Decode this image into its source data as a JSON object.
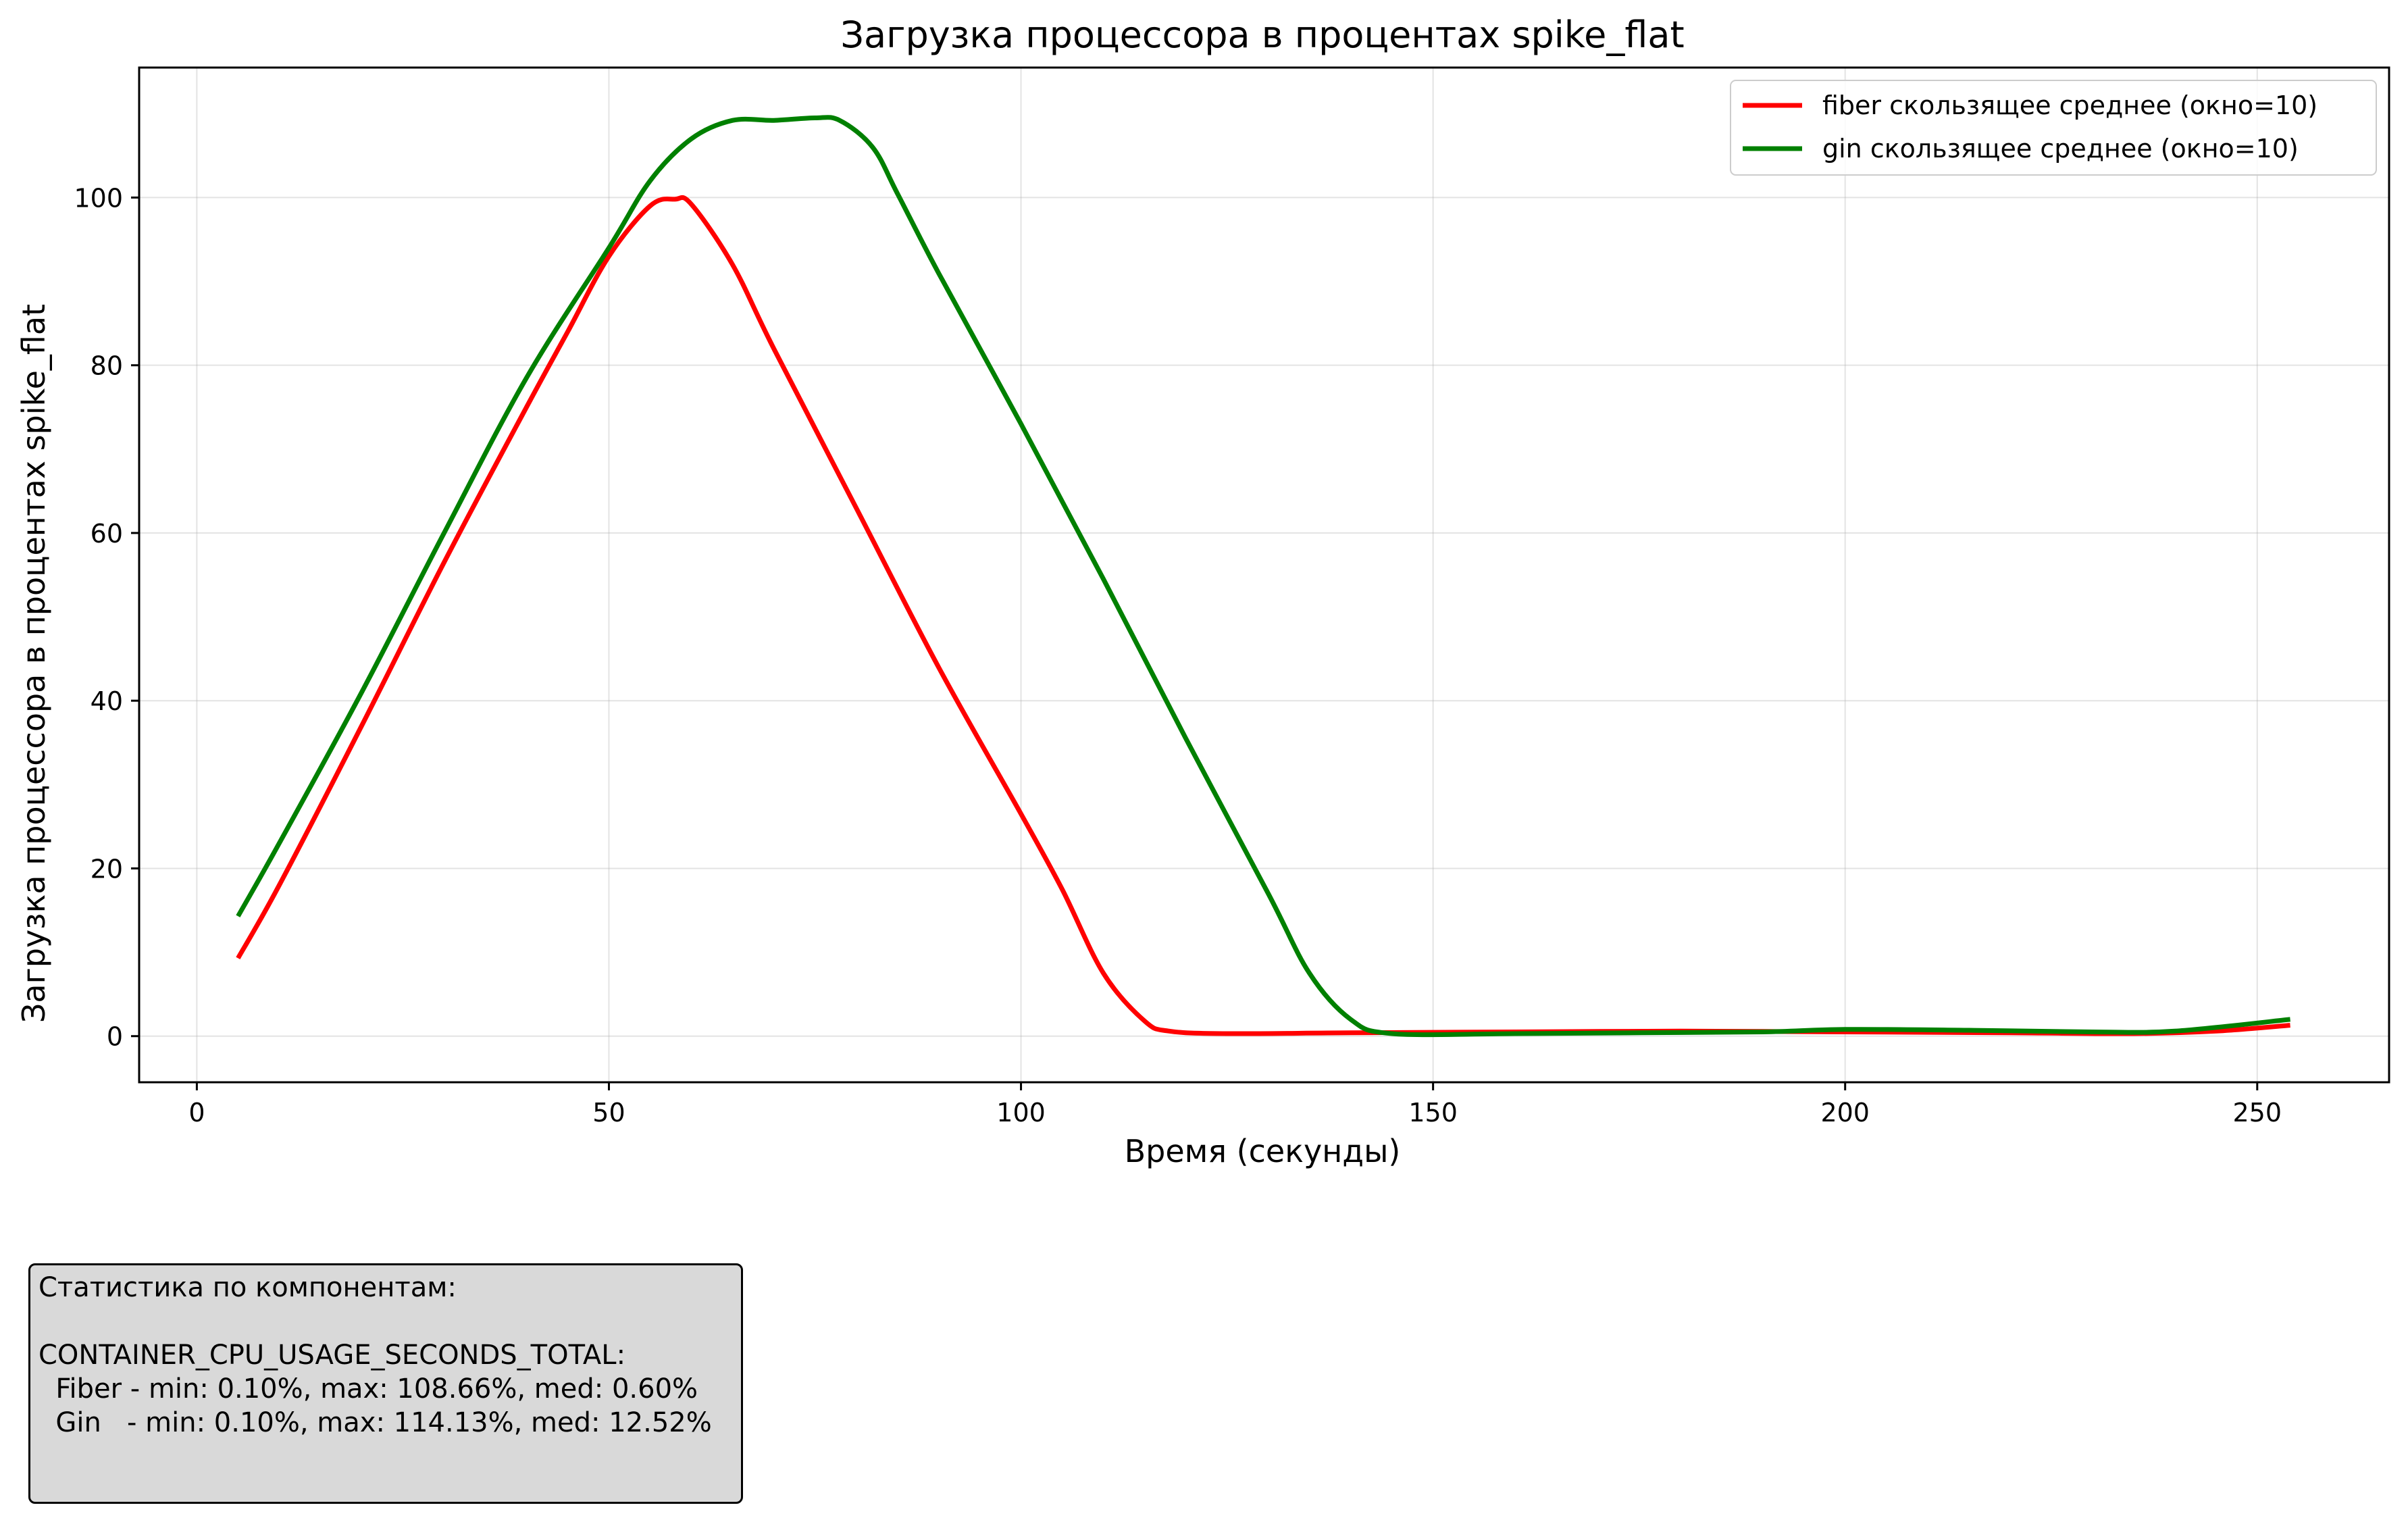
{
  "chart_data": {
    "type": "line",
    "title": "Загрузка процессора в процентах spike_flat",
    "xlabel": "Время (секунды)",
    "ylabel": "Загрузка процессора в процентах spike_flat",
    "xlim": [
      -7,
      266
    ],
    "ylim": [
      -5.5,
      115.5
    ],
    "xticks": [
      0,
      50,
      100,
      150,
      200,
      250
    ],
    "yticks": [
      0,
      20,
      40,
      60,
      80,
      100
    ],
    "grid": true,
    "legend_position": "top-right",
    "series": [
      {
        "name": "fiber скользящее среднее (окно=10)",
        "color": "#ff0000",
        "points": [
          [
            5,
            9.3
          ],
          [
            10,
            18
          ],
          [
            20,
            37
          ],
          [
            30,
            56.5
          ],
          [
            40,
            75
          ],
          [
            45,
            84
          ],
          [
            50,
            93
          ],
          [
            55,
            99
          ],
          [
            58,
            99.8
          ],
          [
            60,
            99.2
          ],
          [
            65,
            92
          ],
          [
            70,
            82
          ],
          [
            80,
            63
          ],
          [
            90,
            44
          ],
          [
            100,
            26.5
          ],
          [
            105,
            17.5
          ],
          [
            110,
            7.5
          ],
          [
            115,
            1.8
          ],
          [
            118,
            0.6
          ],
          [
            125,
            0.3
          ],
          [
            140,
            0.4
          ],
          [
            160,
            0.5
          ],
          [
            180,
            0.6
          ],
          [
            200,
            0.5
          ],
          [
            220,
            0.4
          ],
          [
            235,
            0.3
          ],
          [
            245,
            0.6
          ],
          [
            254,
            1.3
          ]
        ]
      },
      {
        "name": "gin скользящее среднее (окно=10)",
        "color": "#008000",
        "points": [
          [
            5,
            14.3
          ],
          [
            10,
            23
          ],
          [
            20,
            41
          ],
          [
            30,
            60
          ],
          [
            40,
            78.5
          ],
          [
            50,
            94
          ],
          [
            55,
            102
          ],
          [
            60,
            107
          ],
          [
            65,
            109.2
          ],
          [
            70,
            109.2
          ],
          [
            75,
            109.5
          ],
          [
            78,
            109.2
          ],
          [
            82,
            106
          ],
          [
            85,
            100.5
          ],
          [
            90,
            91
          ],
          [
            100,
            73
          ],
          [
            110,
            54.5
          ],
          [
            120,
            35.5
          ],
          [
            130,
            17
          ],
          [
            135,
            7.5
          ],
          [
            140,
            2
          ],
          [
            145,
            0.3
          ],
          [
            160,
            0.3
          ],
          [
            175,
            0.4
          ],
          [
            190,
            0.5
          ],
          [
            200,
            0.8
          ],
          [
            215,
            0.7
          ],
          [
            230,
            0.5
          ],
          [
            240,
            0.6
          ],
          [
            254,
            2
          ]
        ]
      }
    ]
  },
  "stats": {
    "lines": [
      "Статистика по компонентам:",
      "",
      "CONTAINER_CPU_USAGE_SECONDS_TOTAL:",
      "  Fiber - min: 0.10%, max: 108.66%, med: 0.60%",
      "  Gin   - min: 0.10%, max: 114.13%, med: 12.52%"
    ]
  }
}
